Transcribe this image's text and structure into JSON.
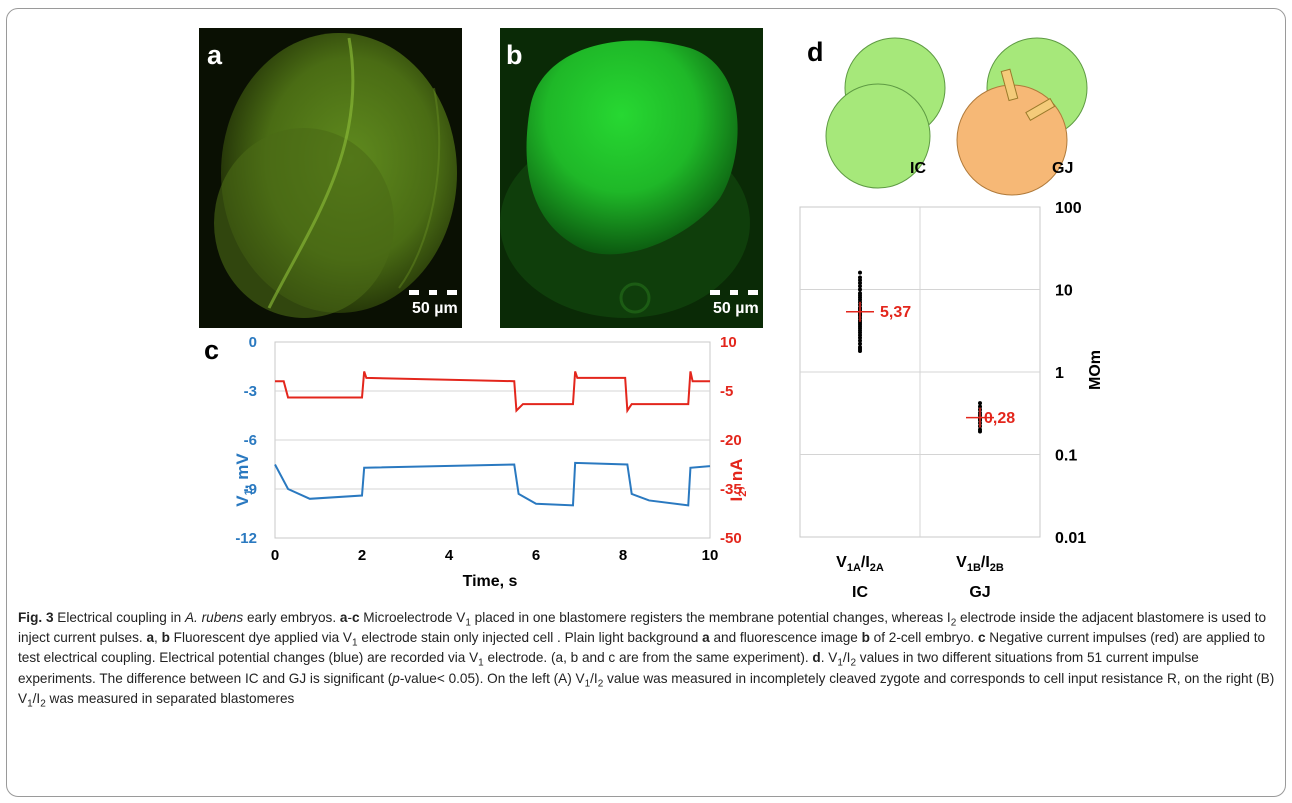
{
  "panels": {
    "a": {
      "label": "a",
      "scale": "50 µm"
    },
    "b": {
      "label": "b",
      "scale": "50 µm"
    },
    "c": {
      "label": "c"
    },
    "d": {
      "label": "d"
    }
  },
  "diagram": {
    "left_label": "IC",
    "right_label": "GJ"
  },
  "chart_c": {
    "left_axis_label": "V1, mV",
    "right_axis_label": "I2, nA",
    "x_axis_label": "Time, s",
    "left_ticks": [
      "0",
      "-3",
      "-6",
      "-9",
      "-12"
    ],
    "right_ticks": [
      "10",
      "-5",
      "-20",
      "-35",
      "-50"
    ],
    "x_ticks": [
      "0",
      "2",
      "4",
      "6",
      "8",
      "10"
    ]
  },
  "chart_d": {
    "y_axis_label": "MOm",
    "y_ticks": [
      "100",
      "10",
      "1",
      "0.1",
      "0.01"
    ],
    "cat1_label": "V1A/I2A",
    "cat2_label": "V1B/I2B",
    "group1": "IC",
    "group2": "GJ",
    "median1": "5,37",
    "median2": "0,28"
  },
  "chart_data": [
    {
      "type": "line",
      "x_label": "Time, s",
      "x_range": [
        0,
        10
      ],
      "series": [
        {
          "name": "V1, mV",
          "axis": "left",
          "color": "#2a79c0",
          "ylim": [
            -12,
            0
          ],
          "x": [
            0,
            0.3,
            0.8,
            2.0,
            2.05,
            5.5,
            5.6,
            6.0,
            6.85,
            6.9,
            8.1,
            8.2,
            8.6,
            9.5,
            9.55,
            10
          ],
          "y": [
            -7.5,
            -9.0,
            -9.6,
            -9.4,
            -7.7,
            -7.5,
            -9.3,
            -9.9,
            -10.0,
            -7.4,
            -7.5,
            -9.3,
            -9.7,
            -10.0,
            -7.7,
            -7.6
          ]
        },
        {
          "name": "I2, nA",
          "axis": "right",
          "color": "#e3261c",
          "ylim": [
            -50,
            10
          ],
          "x": [
            0,
            0.2,
            0.3,
            2.0,
            2.05,
            2.1,
            5.5,
            5.55,
            5.7,
            6.85,
            6.9,
            6.95,
            8.05,
            8.1,
            8.2,
            9.5,
            9.55,
            9.6,
            10
          ],
          "y": [
            -2,
            -2,
            -7,
            -7,
            1,
            -1,
            -2,
            -11,
            -9,
            -9,
            1,
            -1,
            -1,
            -11,
            -9,
            -9,
            1,
            -2,
            -2
          ]
        }
      ]
    },
    {
      "type": "scatter",
      "y_label": "MOm",
      "y_scale": "log",
      "ylim": [
        0.01,
        100
      ],
      "categories": [
        "V1A/I2A",
        "V1B/I2B"
      ],
      "medians": [
        5.37,
        0.28
      ],
      "points": [
        {
          "category": "V1A/I2A",
          "values": [
            16,
            14,
            13,
            12,
            11,
            10,
            9,
            8.5,
            8,
            7.5,
            7,
            6.5,
            6,
            5.8,
            5.5,
            5.2,
            5,
            4.8,
            4.5,
            4.2,
            4,
            3.8,
            3.6,
            3.4,
            3.2,
            3,
            2.8,
            2.6,
            2.4,
            2.2,
            2,
            1.9,
            1.8
          ]
        },
        {
          "category": "V1B/I2B",
          "values": [
            0.42,
            0.38,
            0.35,
            0.32,
            0.3,
            0.28,
            0.27,
            0.26,
            0.24,
            0.22,
            0.2,
            0.19
          ]
        }
      ]
    }
  ],
  "caption": {
    "fig": "Fig. 3",
    "title": " Electrical coupling in ",
    "species": "A. rubens",
    "title2": " early embryos. "
  }
}
